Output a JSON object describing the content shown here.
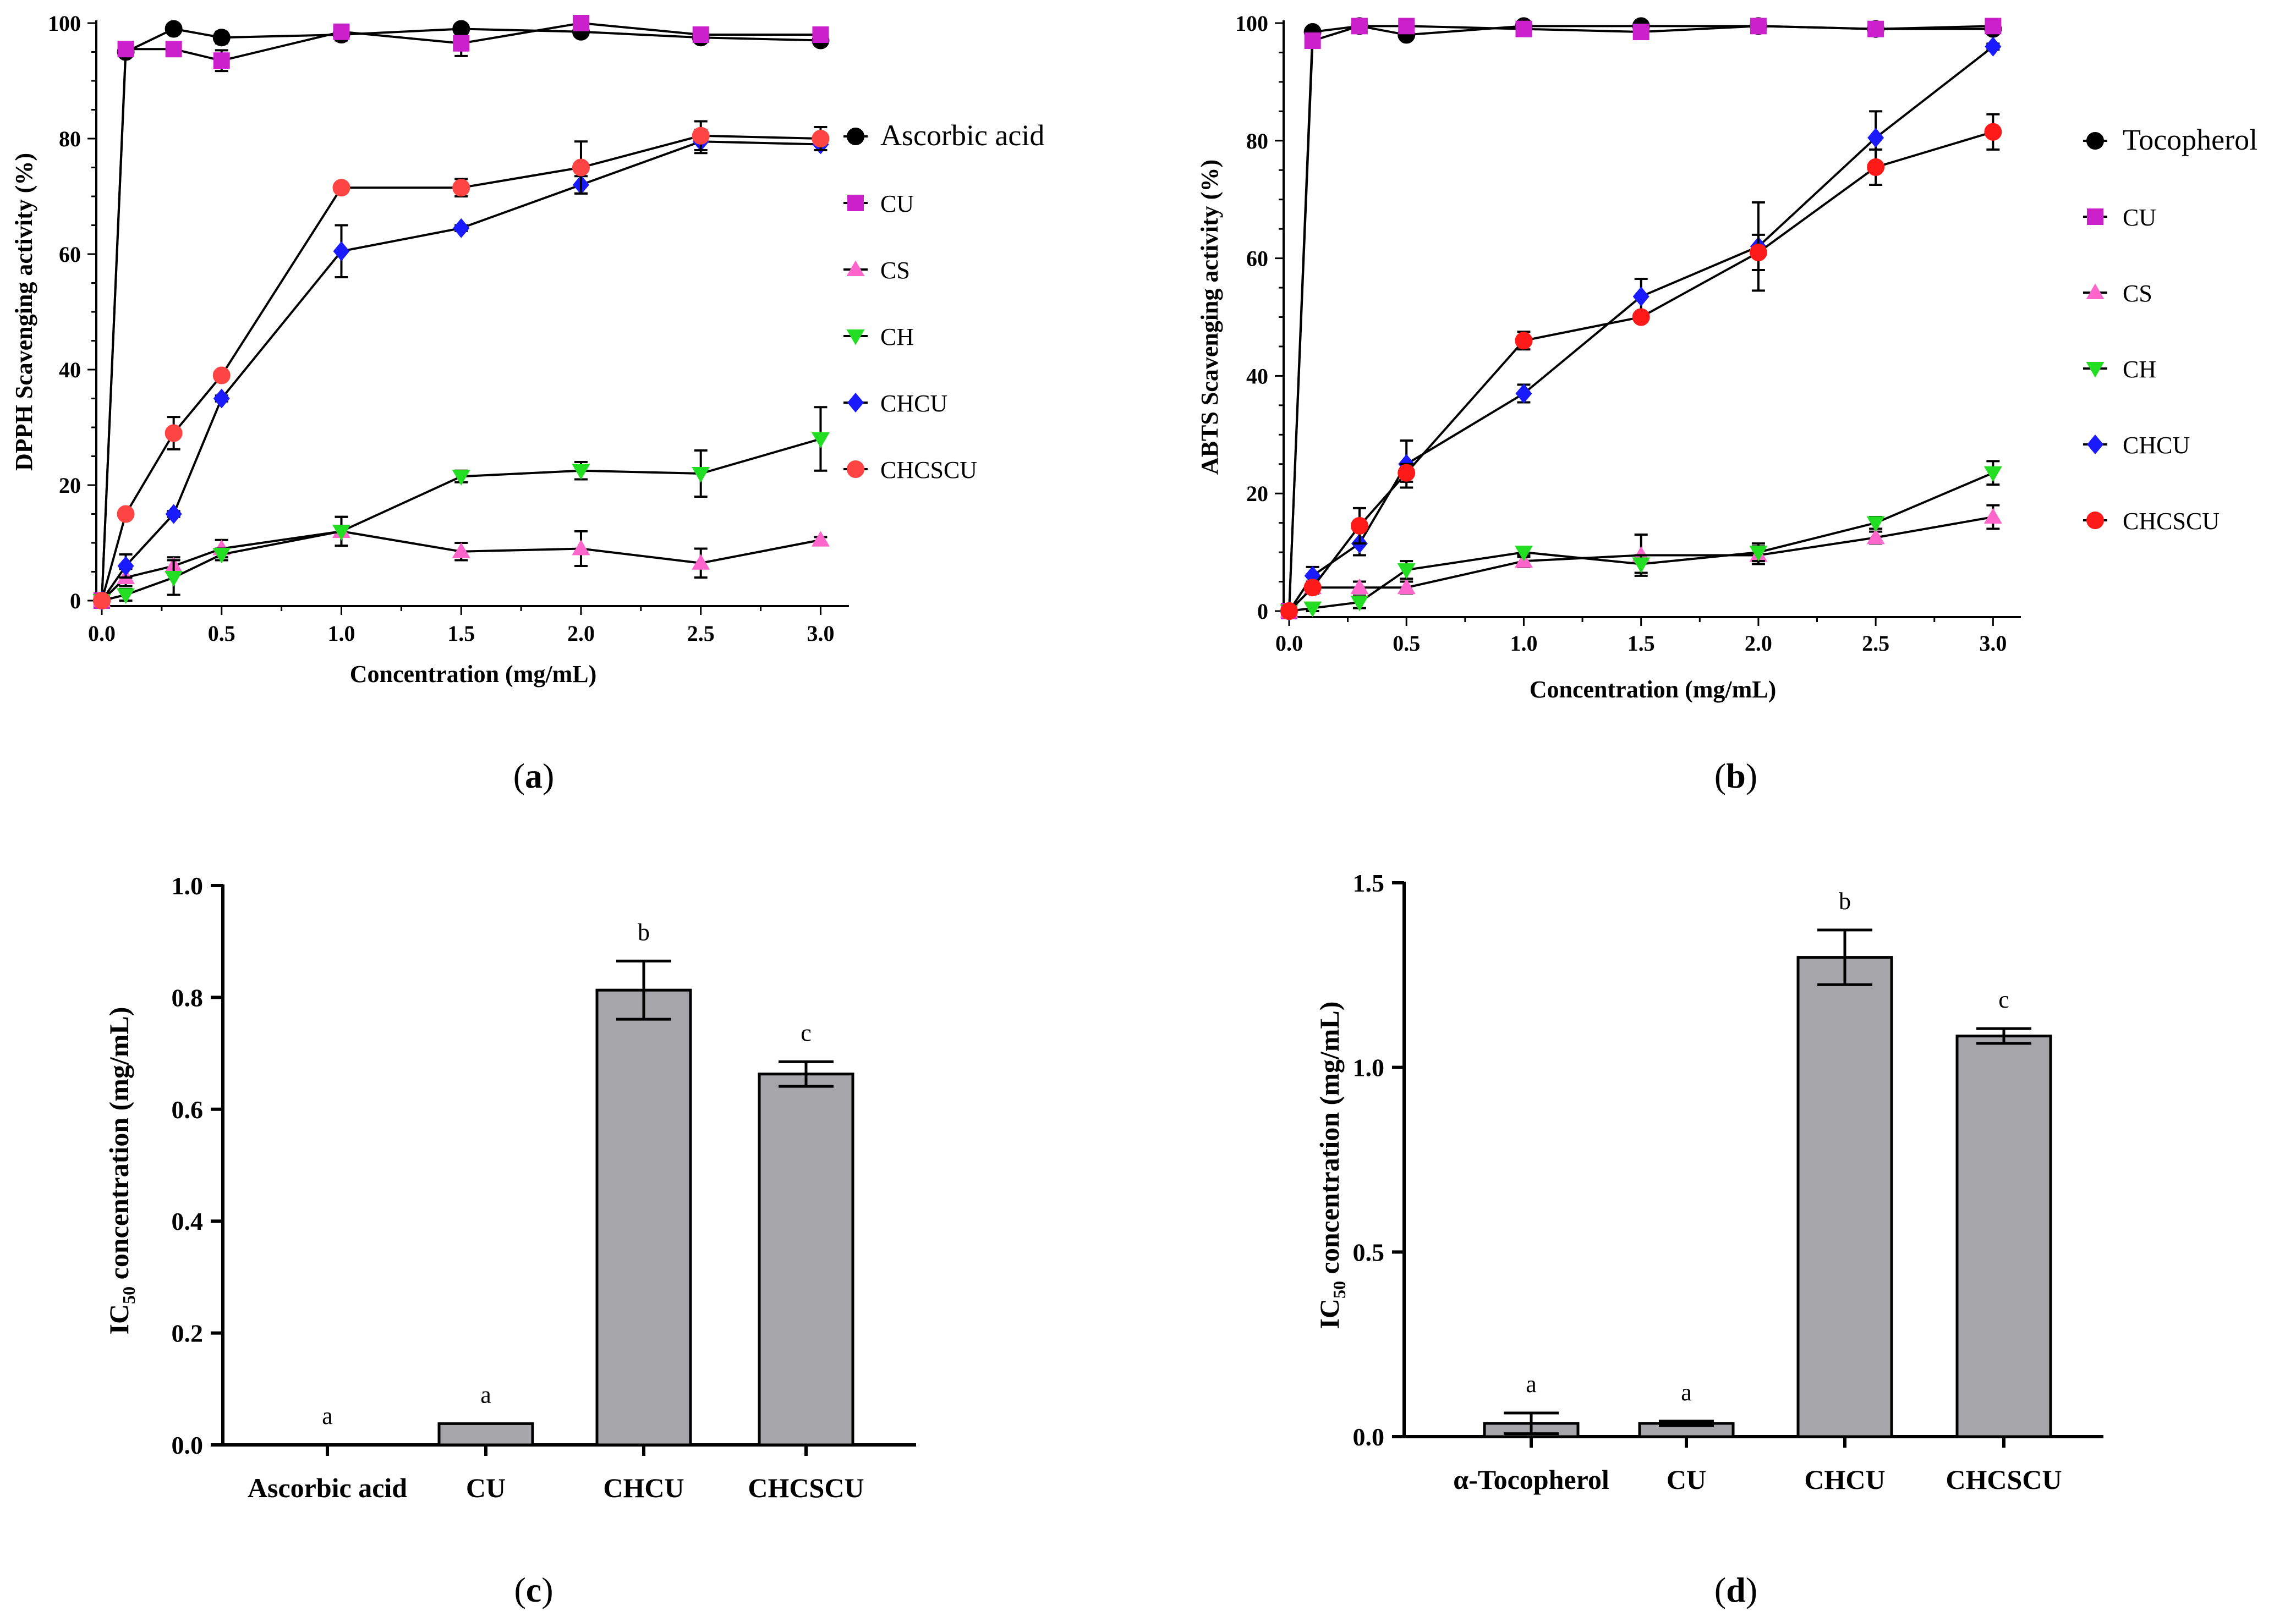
{
  "chart_data": [
    {
      "type": "line",
      "panel": "a",
      "panel_label": "a",
      "xlabel": "Concentration (mg/mL)",
      "ylabel": "DPPH Scavenging activity (%)",
      "xlim": [
        0,
        3.1
      ],
      "ylim": [
        0,
        100
      ],
      "x": [
        0.0,
        0.1,
        0.3,
        0.5,
        1.0,
        1.5,
        2.0,
        2.5,
        3.0
      ],
      "xticks": [
        "0.0",
        "0.5",
        "1.0",
        "1.5",
        "2.0",
        "2.5",
        "3.0"
      ],
      "yticks": [
        "0",
        "20",
        "40",
        "60",
        "80",
        "100"
      ],
      "legend_position": "right",
      "series": [
        {
          "name": "Ascorbic acid",
          "marker": "circle",
          "color": "#000000",
          "values": [
            0,
            95,
            99,
            97.5,
            98,
            99,
            98.5,
            97.5,
            97
          ],
          "errors": [
            0,
            0.5,
            0.5,
            1,
            1,
            0.8,
            0.8,
            0.8,
            0.8
          ]
        },
        {
          "name": "CU",
          "marker": "square",
          "color": "#cc20cc",
          "values": [
            0,
            95.5,
            95.5,
            93.5,
            98.5,
            96.5,
            100,
            98,
            98
          ],
          "errors": [
            0,
            0.8,
            1,
            1.8,
            0.8,
            2.2,
            0.5,
            0.8,
            0.5
          ]
        },
        {
          "name": "CS",
          "marker": "triangle-up",
          "color": "#ff66cc",
          "values": [
            0,
            4,
            6,
            9,
            12,
            8.5,
            9,
            6.5,
            10.5
          ],
          "errors": [
            0,
            1.5,
            1.5,
            1.5,
            2.5,
            1.5,
            3,
            2.5,
            0.5
          ]
        },
        {
          "name": "CH",
          "marker": "triangle-down",
          "color": "#22dd22",
          "values": [
            0,
            1,
            4,
            8,
            12,
            21.5,
            22.5,
            22,
            28
          ],
          "errors": [
            0,
            1,
            3,
            1,
            2.5,
            1,
            1.5,
            4,
            5.5
          ]
        },
        {
          "name": "CHCU",
          "marker": "diamond",
          "color": "#1a1aff",
          "values": [
            0,
            6,
            15,
            35,
            60.5,
            64.5,
            72,
            79.5,
            79
          ],
          "errors": [
            0,
            2,
            0.5,
            0.5,
            4.5,
            0.5,
            1.5,
            2,
            1
          ]
        },
        {
          "name": "CHCSCU",
          "marker": "circle",
          "color": "#ff4444",
          "values": [
            0,
            15,
            29,
            39,
            71.5,
            71.5,
            75,
            80.5,
            80
          ],
          "errors": [
            0,
            0.5,
            2.8,
            0.5,
            0.5,
            1.5,
            4.5,
            2.5,
            2
          ]
        }
      ]
    },
    {
      "type": "line",
      "panel": "b",
      "panel_label": "b",
      "xlabel": "Concentration (mg/mL)",
      "ylabel": "ABTS Scavenging activity (%)",
      "xlim": [
        0,
        3.1
      ],
      "ylim": [
        0,
        100
      ],
      "x": [
        0.0,
        0.1,
        0.3,
        0.5,
        1.0,
        1.5,
        2.0,
        2.5,
        3.0
      ],
      "xticks": [
        "0.0",
        "0.5",
        "1.0",
        "1.5",
        "2.0",
        "2.5",
        "3.0"
      ],
      "yticks": [
        "0",
        "20",
        "40",
        "60",
        "80",
        "100"
      ],
      "legend_position": "right",
      "series": [
        {
          "name": "Tocopherol",
          "marker": "circle",
          "color": "#000000",
          "values": [
            0,
            98.5,
            99.5,
            98,
            99.5,
            99.5,
            99.5,
            99,
            99
          ],
          "errors": [
            0,
            0.5,
            0.5,
            0.5,
            0.5,
            0.5,
            0.5,
            0.5,
            0.5
          ]
        },
        {
          "name": "CU",
          "marker": "square",
          "color": "#cc20cc",
          "values": [
            0,
            97,
            99.5,
            99.5,
            99,
            98.5,
            99.5,
            99,
            99.5
          ],
          "errors": [
            0,
            0.5,
            0.5,
            0.5,
            0.5,
            0.5,
            0.5,
            0.5,
            0.5
          ]
        },
        {
          "name": "CS",
          "marker": "triangle-up",
          "color": "#ff66cc",
          "values": [
            0,
            4,
            4,
            4,
            8.5,
            9.5,
            9.5,
            12.5,
            16
          ],
          "errors": [
            0,
            1,
            1,
            1,
            1,
            3.5,
            1.5,
            1,
            2
          ]
        },
        {
          "name": "CH",
          "marker": "triangle-down",
          "color": "#22dd22",
          "values": [
            0,
            0.5,
            1.5,
            7,
            10,
            8,
            10,
            15,
            23.5
          ],
          "errors": [
            0,
            0.5,
            1,
            1.5,
            0.8,
            1.5,
            1.5,
            1,
            2
          ]
        },
        {
          "name": "CHCU",
          "marker": "diamond",
          "color": "#1a1aff",
          "values": [
            0,
            6,
            11.5,
            25,
            37,
            53.5,
            62,
            80.5,
            96
          ],
          "errors": [
            0,
            1.5,
            2,
            4,
            1.5,
            3,
            7.5,
            4.5,
            0.5
          ]
        },
        {
          "name": "CHCSCU",
          "marker": "circle",
          "color": "#ff1a1a",
          "values": [
            0,
            4,
            14.5,
            23.5,
            46,
            50,
            61,
            75.5,
            81.5
          ],
          "errors": [
            0,
            1,
            3,
            1.5,
            1.5,
            0.8,
            3,
            3,
            3
          ]
        }
      ]
    },
    {
      "type": "bar",
      "panel": "c",
      "panel_label": "c",
      "categories": [
        "Ascorbic acid",
        "CU",
        "CHCU",
        "CHCSCU"
      ],
      "values": [
        0.0,
        0.038,
        0.813,
        0.663
      ],
      "errors": [
        0.0,
        0.0,
        0.052,
        0.022
      ],
      "significance": [
        "a",
        "a",
        "b",
        "c"
      ],
      "ylabel_main": "IC",
      "ylabel_sub": "50",
      "ylabel_rest": " concentration (mg/mL)",
      "ylim": [
        0,
        1.0
      ],
      "yticks": [
        "0.0",
        "0.2",
        "0.4",
        "0.6",
        "0.8",
        "1.0"
      ],
      "bar_color": "#a6a5aa"
    },
    {
      "type": "bar",
      "panel": "d",
      "panel_label": "d",
      "categories": [
        "α-Tocopherol",
        "CU",
        "CHCU",
        "CHCSCU"
      ],
      "values": [
        0.036,
        0.036,
        1.298,
        1.085
      ],
      "errors": [
        0.028,
        0.006,
        0.074,
        0.02
      ],
      "significance": [
        "a",
        "a",
        "b",
        "c"
      ],
      "ylabel_main": "IC",
      "ylabel_sub": "50",
      "ylabel_rest": " concentration (mg/mL)",
      "ylim": [
        0,
        1.5
      ],
      "yticks": [
        "0.0",
        "0.5",
        "1.0",
        "1.5"
      ],
      "bar_color": "#a6a5aa"
    }
  ]
}
